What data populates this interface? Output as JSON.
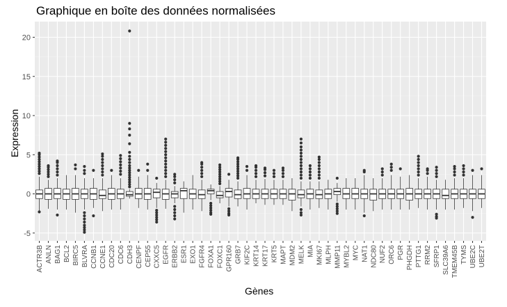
{
  "chart_data": {
    "type": "box",
    "title": "Graphique en boîte des données normalisées",
    "xlabel": "Gènes",
    "ylabel": "Expression",
    "ylim": [
      -6.0,
      22.0
    ],
    "y_ticks": [
      -5,
      0,
      5,
      10,
      15,
      20
    ],
    "grid": true,
    "legend": "none",
    "colors": {
      "panel": "#ebebeb",
      "grid_major": "#ffffff",
      "grid_minor": "#f5f5f5",
      "box_fill": "#ffffff",
      "box_line": "#333333",
      "point": "#333333",
      "tick_text": "#4d4d4d"
    },
    "categories": [
      "ACTR3B",
      "ANLN",
      "BAG1",
      "BCL2",
      "BIRC5",
      "BLVRA",
      "CCNB1",
      "CCNE1",
      "CDC20",
      "CDC6",
      "CDH3",
      "CENPF",
      "CEP55",
      "CXXC5",
      "EGFR",
      "ERBB2",
      "ESR1",
      "EXO1",
      "FGFR4",
      "FOXA1",
      "FOXC1",
      "GPR160",
      "GRB7",
      "KIF2C",
      "KRT14",
      "KRT17",
      "KRT5",
      "MAPT",
      "MDM2",
      "MELK",
      "MIA",
      "MKI67",
      "MLPH",
      "MMP11",
      "MYBL2",
      "MYC",
      "NAT1",
      "NDC80",
      "NUF2",
      "ORC6",
      "PGR",
      "PHGDH",
      "PTTG1",
      "RRM2",
      "SFRP1",
      "SLC39A6",
      "TMEM45B",
      "TYMS",
      "UBE2C",
      "UBE2T"
    ],
    "boxes": [
      {
        "q1": -0.6,
        "median": 0.0,
        "q3": 0.5,
        "whisker_low": -2.2,
        "whisker_high": 2.2,
        "outliers": [
          -2.3,
          2.6,
          2.9,
          3.2,
          3.5,
          3.8,
          4.1,
          4.4,
          4.7,
          5.0,
          5.2
        ]
      },
      {
        "q1": -0.7,
        "median": 0.0,
        "q3": 0.7,
        "whisker_low": -1.9,
        "whisker_high": 1.8,
        "outliers": [
          2.2,
          2.5,
          2.8,
          3.1,
          3.4,
          3.6
        ]
      },
      {
        "q1": -0.6,
        "median": 0.0,
        "q3": 0.7,
        "whisker_low": -2.0,
        "whisker_high": 2.0,
        "outliers": [
          -2.7,
          2.4,
          2.8,
          3.2,
          3.6,
          4.0,
          4.2
        ]
      },
      {
        "q1": -0.7,
        "median": 0.0,
        "q3": 0.6,
        "whisker_low": -2.0,
        "whisker_high": 2.4,
        "outliers": []
      },
      {
        "q1": -0.7,
        "median": 0.0,
        "q3": 0.7,
        "whisker_low": -2.4,
        "whisker_high": 2.4,
        "outliers": [
          3.2,
          3.7
        ]
      },
      {
        "q1": -0.6,
        "median": 0.0,
        "q3": 0.6,
        "whisker_low": -2.0,
        "whisker_high": 2.0,
        "outliers": [
          -2.4,
          -2.8,
          -3.2,
          -3.6,
          -4.0,
          -4.3,
          -4.6,
          -4.9,
          2.6,
          3.0,
          3.5
        ]
      },
      {
        "q1": -0.7,
        "median": 0.0,
        "q3": 0.7,
        "whisker_low": -1.8,
        "whisker_high": 2.0,
        "outliers": [
          -2.8,
          3.0
        ]
      },
      {
        "q1": -0.6,
        "median": -0.2,
        "q3": 0.5,
        "whisker_low": -2.2,
        "whisker_high": 2.0,
        "outliers": [
          2.4,
          2.8,
          3.2,
          3.6,
          4.0,
          4.4,
          4.8,
          5.1
        ]
      },
      {
        "q1": -0.7,
        "median": 0.0,
        "q3": 0.7,
        "whisker_low": -2.0,
        "whisker_high": 2.4,
        "outliers": [
          3.0
        ]
      },
      {
        "q1": -0.6,
        "median": 0.0,
        "q3": 0.6,
        "whisker_low": -2.0,
        "whisker_high": 2.0,
        "outliers": [
          2.5,
          2.9,
          3.3,
          3.7,
          4.1,
          4.5,
          4.9
        ]
      },
      {
        "q1": -0.3,
        "median": -0.1,
        "q3": 0.3,
        "whisker_low": -0.6,
        "whisker_high": 0.6,
        "outliers": [
          0.9,
          1.2,
          1.5,
          1.8,
          2.1,
          2.4,
          2.7,
          3.0,
          3.3,
          3.6,
          4.0,
          4.4,
          4.8,
          5.3,
          6.4,
          7.5,
          8.3,
          9.0,
          20.8
        ]
      },
      {
        "q1": -0.6,
        "median": 0.0,
        "q3": 0.7,
        "whisker_low": -1.8,
        "whisker_high": 2.2,
        "outliers": [
          3.0
        ]
      },
      {
        "q1": -0.7,
        "median": 0.0,
        "q3": 0.7,
        "whisker_low": -2.0,
        "whisker_high": 2.4,
        "outliers": [
          3.0,
          3.8
        ]
      },
      {
        "q1": -0.5,
        "median": 0.2,
        "q3": 0.6,
        "whisker_low": -1.8,
        "whisker_high": 1.4,
        "outliers": [
          -2.1,
          -2.4,
          -2.7,
          -3.0,
          -3.3,
          -3.6,
          2.0
        ]
      },
      {
        "q1": -0.7,
        "median": 0.0,
        "q3": 0.6,
        "whisker_low": -1.9,
        "whisker_high": 1.8,
        "outliers": [
          2.2,
          2.6,
          3.0,
          3.4,
          3.8,
          4.2,
          4.6,
          5.0,
          5.4,
          5.8,
          6.2,
          6.6,
          7.0
        ]
      },
      {
        "q1": -0.5,
        "median": 0.0,
        "q3": 0.3,
        "whisker_low": -1.2,
        "whisker_high": 1.0,
        "outliers": [
          -1.6,
          -2.0,
          -2.4,
          -2.8,
          -3.2,
          1.4,
          1.8,
          2.2,
          2.5
        ]
      },
      {
        "q1": -0.6,
        "median": 0.4,
        "q3": 0.7,
        "whisker_low": -2.4,
        "whisker_high": 1.6,
        "outliers": []
      },
      {
        "q1": -0.6,
        "median": 0.0,
        "q3": 0.6,
        "whisker_low": -2.0,
        "whisker_high": 2.4,
        "outliers": []
      },
      {
        "q1": -0.6,
        "median": -0.1,
        "q3": 0.5,
        "whisker_low": -2.2,
        "whisker_high": 1.8,
        "outliers": [
          2.2,
          2.6,
          3.0,
          3.4,
          3.8,
          4.0
        ]
      },
      {
        "q1": 0.0,
        "median": 0.4,
        "q3": 0.6,
        "whisker_low": -0.8,
        "whisker_high": 1.2,
        "outliers": [
          -1.2,
          -1.5,
          -1.8,
          -2.1,
          -2.4,
          -2.6
        ]
      },
      {
        "q1": -0.5,
        "median": -0.2,
        "q3": 0.3,
        "whisker_low": -1.2,
        "whisker_high": 1.0,
        "outliers": [
          1.3,
          1.6,
          1.9,
          2.2,
          2.5,
          2.8,
          3.1,
          3.4,
          3.7
        ]
      },
      {
        "q1": -0.4,
        "median": 0.3,
        "q3": 0.7,
        "whisker_low": -1.6,
        "whisker_high": 1.8,
        "outliers": [
          -1.9,
          -2.2,
          -2.5,
          -2.7,
          2.5
        ]
      },
      {
        "q1": -0.6,
        "median": -0.1,
        "q3": 0.5,
        "whisker_low": -1.6,
        "whisker_high": 1.6,
        "outliers": [
          2.0,
          2.3,
          2.6,
          2.9,
          3.2,
          3.5,
          3.8,
          4.1,
          4.4,
          4.6
        ]
      },
      {
        "q1": -0.6,
        "median": 0.0,
        "q3": 0.7,
        "whisker_low": -2.0,
        "whisker_high": 2.4,
        "outliers": [
          3.0,
          3.5
        ]
      },
      {
        "q1": -0.6,
        "median": 0.0,
        "q3": 0.6,
        "whisker_low": -1.2,
        "whisker_high": 1.8,
        "outliers": [
          2.2,
          2.6,
          3.0,
          3.4,
          3.6
        ]
      },
      {
        "q1": -0.6,
        "median": 0.0,
        "q3": 0.6,
        "whisker_low": -1.4,
        "whisker_high": 1.9,
        "outliers": [
          2.3,
          2.7,
          3.1,
          3.3
        ]
      },
      {
        "q1": -0.6,
        "median": 0.0,
        "q3": 0.6,
        "whisker_low": -1.4,
        "whisker_high": 1.8,
        "outliers": [
          2.2,
          2.6,
          3.0
        ]
      },
      {
        "q1": -0.6,
        "median": 0.0,
        "q3": 0.6,
        "whisker_low": -1.4,
        "whisker_high": 1.8,
        "outliers": [
          2.2,
          2.6,
          3.0,
          3.3
        ]
      },
      {
        "q1": -0.8,
        "median": 0.0,
        "q3": 0.6,
        "whisker_low": -2.2,
        "whisker_high": 2.0,
        "outliers": []
      },
      {
        "q1": -0.5,
        "median": -0.1,
        "q3": 0.5,
        "whisker_low": -1.6,
        "whisker_high": 1.6,
        "outliers": [
          -2.0,
          -2.4,
          -2.7,
          2.0,
          2.4,
          2.8,
          3.2,
          3.6,
          4.0,
          4.4,
          4.8,
          5.2,
          5.6,
          6.0,
          6.5,
          7.0
        ]
      },
      {
        "q1": -0.6,
        "median": 0.0,
        "q3": 0.6,
        "whisker_low": -2.0,
        "whisker_high": 1.6,
        "outliers": [
          2.0,
          2.4,
          2.8,
          3.2,
          3.6
        ]
      },
      {
        "q1": -0.6,
        "median": -0.1,
        "q3": 0.5,
        "whisker_low": -1.8,
        "whisker_high": 1.6,
        "outliers": [
          2.0,
          2.4,
          2.8,
          3.2,
          3.6,
          4.0,
          4.4,
          4.7
        ]
      },
      {
        "q1": -0.6,
        "median": 0.0,
        "q3": 0.6,
        "whisker_low": -2.0,
        "whisker_high": 1.8,
        "outliers": []
      },
      {
        "q1": -0.1,
        "median": 0.3,
        "q3": 0.7,
        "whisker_low": -1.0,
        "whisker_high": 1.4,
        "outliers": [
          -1.3,
          -1.6,
          -1.9,
          -2.2,
          -2.5,
          2.0
        ]
      },
      {
        "q1": -0.6,
        "median": 0.0,
        "q3": 0.7,
        "whisker_low": -2.0,
        "whisker_high": 2.0,
        "outliers": []
      },
      {
        "q1": -0.6,
        "median": 0.0,
        "q3": 0.7,
        "whisker_low": -2.0,
        "whisker_high": 2.0,
        "outliers": []
      },
      {
        "q1": -0.6,
        "median": 0.0,
        "q3": 0.6,
        "whisker_low": -2.4,
        "whisker_high": 2.4,
        "outliers": [
          -2.8,
          2.8,
          3.0
        ]
      },
      {
        "q1": -0.8,
        "median": 0.0,
        "q3": 0.6,
        "whisker_low": -2.2,
        "whisker_high": 2.0,
        "outliers": []
      },
      {
        "q1": -0.6,
        "median": 0.0,
        "q3": 0.6,
        "whisker_low": -2.0,
        "whisker_high": 2.0,
        "outliers": [
          2.4,
          2.8,
          3.2
        ]
      },
      {
        "q1": -0.6,
        "median": 0.0,
        "q3": 0.6,
        "whisker_low": -2.0,
        "whisker_high": 2.4,
        "outliers": [
          3.0,
          3.4,
          3.8
        ]
      },
      {
        "q1": -0.6,
        "median": 0.0,
        "q3": 0.6,
        "whisker_low": -2.0,
        "whisker_high": 2.2,
        "outliers": [
          3.2
        ]
      },
      {
        "q1": -0.8,
        "median": 0.0,
        "q3": 0.7,
        "whisker_low": -2.0,
        "whisker_high": 2.4,
        "outliers": []
      },
      {
        "q1": -0.6,
        "median": 0.0,
        "q3": 0.6,
        "whisker_low": -1.8,
        "whisker_high": 2.0,
        "outliers": [
          2.4,
          2.8,
          3.2,
          3.6,
          4.0,
          4.4,
          4.8
        ]
      },
      {
        "q1": -0.6,
        "median": 0.0,
        "q3": 0.6,
        "whisker_low": -2.0,
        "whisker_high": 2.2,
        "outliers": [
          2.6,
          3.0,
          3.2
        ]
      },
      {
        "q1": -0.6,
        "median": 0.0,
        "q3": 0.6,
        "whisker_low": -2.0,
        "whisker_high": 1.8,
        "outliers": [
          -2.6,
          -2.9,
          -3.1,
          2.2,
          2.6,
          3.0,
          3.4
        ]
      },
      {
        "q1": -0.6,
        "median": -0.2,
        "q3": 0.6,
        "whisker_low": -2.0,
        "whisker_high": 1.8,
        "outliers": []
      },
      {
        "q1": -0.6,
        "median": 0.0,
        "q3": 0.6,
        "whisker_low": -2.0,
        "whisker_high": 2.0,
        "outliers": [
          2.4,
          2.8,
          3.2,
          3.5
        ]
      },
      {
        "q1": -0.6,
        "median": 0.0,
        "q3": 0.6,
        "whisker_low": -1.8,
        "whisker_high": 2.0,
        "outliers": [
          2.4,
          2.8,
          3.2,
          3.6
        ]
      },
      {
        "q1": -0.6,
        "median": 0.0,
        "q3": 0.6,
        "whisker_low": -2.2,
        "whisker_high": 2.4,
        "outliers": [
          -3.0,
          3.0
        ]
      },
      {
        "q1": -0.6,
        "median": 0.0,
        "q3": 0.6,
        "whisker_low": -1.8,
        "whisker_high": 2.4,
        "outliers": [
          3.2
        ]
      }
    ]
  }
}
